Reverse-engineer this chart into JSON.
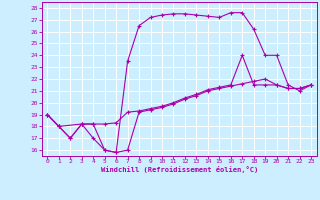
{
  "xlabel": "Windchill (Refroidissement éolien,°C)",
  "bg_color": "#cceeff",
  "grid_color": "#ffffff",
  "line_color": "#aa00aa",
  "xlim": [
    -0.5,
    23.5
  ],
  "ylim": [
    15.5,
    28.5
  ],
  "xticks": [
    0,
    1,
    2,
    3,
    4,
    5,
    6,
    7,
    8,
    9,
    10,
    11,
    12,
    13,
    14,
    15,
    16,
    17,
    18,
    19,
    20,
    21,
    22,
    23
  ],
  "yticks": [
    16,
    17,
    18,
    19,
    20,
    21,
    22,
    23,
    24,
    25,
    26,
    27,
    28
  ],
  "curve1_x": [
    0,
    1,
    2,
    3,
    4,
    5,
    6,
    7,
    8,
    9,
    10,
    11,
    12,
    13,
    14,
    15,
    16,
    17,
    18,
    19,
    20,
    21,
    22,
    23
  ],
  "curve1_y": [
    19,
    18,
    17,
    18.2,
    18.2,
    16.0,
    15.8,
    16.0,
    19.2,
    19.4,
    19.6,
    19.9,
    20.3,
    20.6,
    21.0,
    21.2,
    21.4,
    21.6,
    21.8,
    22.0,
    21.5,
    21.2,
    21.2,
    21.5
  ],
  "curve2_x": [
    0,
    1,
    3,
    4,
    5,
    6,
    7,
    8,
    9,
    10,
    11,
    12,
    13,
    14,
    15,
    16,
    17,
    18,
    19,
    20,
    21,
    22,
    23
  ],
  "curve2_y": [
    19,
    18,
    18.2,
    17.0,
    16.0,
    15.8,
    23.5,
    26.5,
    27.2,
    27.4,
    27.5,
    27.5,
    27.4,
    27.3,
    27.2,
    27.6,
    27.6,
    26.2,
    24.0,
    24.0,
    21.5,
    21.0,
    21.5
  ],
  "curve3_x": [
    0,
    1,
    2,
    3,
    4,
    5,
    6,
    7,
    8,
    9,
    10,
    11,
    12,
    13,
    14,
    15,
    16,
    17,
    18,
    19,
    20,
    21,
    22,
    23
  ],
  "curve3_y": [
    19.0,
    18.0,
    17.0,
    18.2,
    18.2,
    18.2,
    18.3,
    19.2,
    19.3,
    19.5,
    19.7,
    20.0,
    20.4,
    20.7,
    21.1,
    21.3,
    21.5,
    24.0,
    21.5,
    21.5,
    21.5,
    21.2,
    21.2,
    21.5
  ]
}
